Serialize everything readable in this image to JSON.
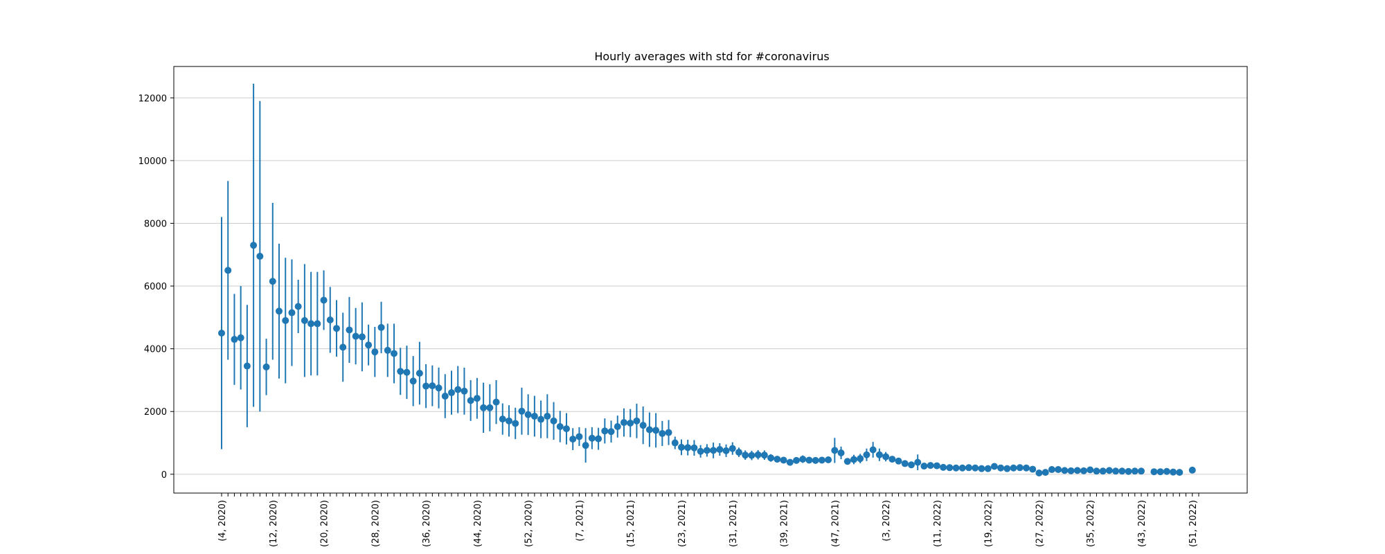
{
  "chart_data": {
    "type": "scatter",
    "title": "Hourly averages with std for #coronavirus",
    "xlabel": "",
    "ylabel": "",
    "ylim": [
      -600,
      13000
    ],
    "yticks": [
      0,
      2000,
      4000,
      6000,
      8000,
      10000,
      12000
    ],
    "ytick_labels": [
      "0",
      "2000",
      "4000",
      "6000",
      "8000",
      "10000",
      "12000"
    ],
    "grid": "horizontal",
    "legend": "none",
    "colors": {
      "marker": "#1f77b4",
      "grid": "#cccccc",
      "axes": "#000000"
    },
    "x_weeks": [
      "(4, 2020)",
      "(5, 2020)",
      "(6, 2020)",
      "(7, 2020)",
      "(8, 2020)",
      "(9, 2020)",
      "(10, 2020)",
      "(11, 2020)",
      "(12, 2020)",
      "(13, 2020)",
      "(14, 2020)",
      "(15, 2020)",
      "(16, 2020)",
      "(17, 2020)",
      "(18, 2020)",
      "(19, 2020)",
      "(20, 2020)",
      "(21, 2020)",
      "(22, 2020)",
      "(23, 2020)",
      "(24, 2020)",
      "(25, 2020)",
      "(26, 2020)",
      "(27, 2020)",
      "(28, 2020)",
      "(29, 2020)",
      "(30, 2020)",
      "(31, 2020)",
      "(32, 2020)",
      "(33, 2020)",
      "(34, 2020)",
      "(35, 2020)",
      "(36, 2020)",
      "(37, 2020)",
      "(38, 2020)",
      "(39, 2020)",
      "(40, 2020)",
      "(41, 2020)",
      "(42, 2020)",
      "(43, 2020)",
      "(44, 2020)",
      "(45, 2020)",
      "(46, 2020)",
      "(47, 2020)",
      "(48, 2020)",
      "(49, 2020)",
      "(50, 2020)",
      "(51, 2020)",
      "(52, 2020)",
      "(53, 2020)",
      "(1, 2021)",
      "(2, 2021)",
      "(3, 2021)",
      "(4, 2021)",
      "(5, 2021)",
      "(6, 2021)",
      "(7, 2021)",
      "(8, 2021)",
      "(9, 2021)",
      "(10, 2021)",
      "(11, 2021)",
      "(12, 2021)",
      "(13, 2021)",
      "(14, 2021)",
      "(15, 2021)",
      "(16, 2021)",
      "(17, 2021)",
      "(18, 2021)",
      "(19, 2021)",
      "(20, 2021)",
      "(21, 2021)",
      "(22, 2021)",
      "(23, 2021)",
      "(24, 2021)",
      "(25, 2021)",
      "(26, 2021)",
      "(27, 2021)",
      "(28, 2021)",
      "(29, 2021)",
      "(30, 2021)",
      "(31, 2021)",
      "(32, 2021)",
      "(33, 2021)",
      "(34, 2021)",
      "(35, 2021)",
      "(36, 2021)",
      "(37, 2021)",
      "(38, 2021)",
      "(39, 2021)",
      "(40, 2021)",
      "(41, 2021)",
      "(42, 2021)",
      "(43, 2021)",
      "(44, 2021)",
      "(45, 2021)",
      "(46, 2021)",
      "(47, 2021)",
      "(48, 2021)",
      "(49, 2021)",
      "(50, 2021)",
      "(51, 2021)",
      "(52, 2021)",
      "(1, 2022)",
      "(2, 2022)",
      "(3, 2022)",
      "(4, 2022)",
      "(5, 2022)",
      "(6, 2022)",
      "(7, 2022)",
      "(8, 2022)",
      "(9, 2022)",
      "(10, 2022)",
      "(11, 2022)",
      "(12, 2022)",
      "(13, 2022)",
      "(14, 2022)",
      "(15, 2022)",
      "(16, 2022)",
      "(17, 2022)",
      "(18, 2022)",
      "(19, 2022)",
      "(20, 2022)",
      "(21, 2022)",
      "(22, 2022)",
      "(23, 2022)",
      "(24, 2022)",
      "(25, 2022)",
      "(26, 2022)",
      "(27, 2022)",
      "(28, 2022)",
      "(29, 2022)",
      "(30, 2022)",
      "(31, 2022)",
      "(32, 2022)",
      "(33, 2022)",
      "(34, 2022)",
      "(35, 2022)",
      "(36, 2022)",
      "(37, 2022)",
      "(38, 2022)",
      "(39, 2022)",
      "(40, 2022)",
      "(41, 2022)",
      "(42, 2022)",
      "(43, 2022)",
      "(44, 2022)",
      "(45, 2022)",
      "(46, 2022)",
      "(47, 2022)",
      "(48, 2022)",
      "(49, 2022)",
      "(50, 2022)",
      "(51, 2022)",
      "(52, 2022)"
    ],
    "visible_tick_labels": [
      "(4, 2020)",
      "(12, 2020)",
      "(20, 2020)",
      "(28, 2020)",
      "(36, 2020)",
      "(44, 2020)",
      "(52, 2020)",
      "(7, 2021)",
      "(15, 2021)",
      "(23, 2021)",
      "(31, 2021)",
      "(39, 2021)",
      "(47, 2021)",
      "(3, 2022)",
      "(11, 2022)",
      "(19, 2022)",
      "(27, 2022)",
      "(35, 2022)",
      "(43, 2022)",
      "(51, 2022)"
    ],
    "series": [
      {
        "values": [
          4500,
          6500,
          4300,
          4350,
          3450,
          7300,
          6950,
          3420,
          6150,
          5200,
          4900,
          5150,
          5350,
          4900,
          4800,
          4800,
          5550,
          4920,
          4650,
          4050,
          4600,
          4400,
          4380,
          4120,
          3900,
          4680,
          3950,
          3850,
          3280,
          3250,
          2970,
          3220,
          2810,
          2820,
          2750,
          2490,
          2600,
          2700,
          2650,
          2350,
          2420,
          2120,
          2120,
          2300,
          1760,
          1700,
          1620,
          2010,
          1900,
          1850,
          1750,
          1850,
          1700,
          1520,
          1450,
          1120,
          1200,
          920,
          1150,
          1130,
          1380,
          1360,
          1520,
          1650,
          1630,
          1700,
          1560,
          1420,
          1400,
          1300,
          1330,
          1000,
          860,
          850,
          840,
          730,
          760,
          760,
          790,
          750,
          820,
          700,
          610,
          600,
          620,
          610,
          520,
          480,
          450,
          380,
          440,
          480,
          450,
          440,
          450,
          460,
          760,
          680,
          410,
          470,
          500,
          620,
          780,
          620,
          560,
          480,
          420,
          340,
          300,
          380,
          260,
          280,
          270,
          220,
          210,
          200,
          200,
          210,
          200,
          180,
          180,
          250,
          200,
          180,
          200,
          210,
          200,
          160,
          40,
          60,
          150,
          150,
          120,
          110,
          120,
          110,
          140,
          100,
          100,
          120,
          100,
          100,
          90,
          100,
          100,
          null,
          80,
          80,
          90,
          70,
          60,
          null,
          130
        ],
        "errors": [
          3700,
          2850,
          1450,
          1650,
          1950,
          5150,
          4950,
          900,
          2500,
          2150,
          2000,
          1700,
          850,
          1800,
          1650,
          1650,
          950,
          1050,
          900,
          1100,
          1050,
          900,
          1100,
          650,
          800,
          820,
          850,
          950,
          750,
          850,
          800,
          1000,
          700,
          650,
          650,
          700,
          700,
          750,
          750,
          650,
          650,
          800,
          750,
          700,
          500,
          500,
          500,
          750,
          650,
          650,
          600,
          700,
          600,
          500,
          500,
          350,
          300,
          550,
          350,
          350,
          400,
          350,
          350,
          450,
          450,
          550,
          600,
          550,
          550,
          400,
          400,
          200,
          250,
          250,
          250,
          200,
          200,
          250,
          200,
          200,
          200,
          150,
          150,
          150,
          150,
          150,
          120,
          100,
          100,
          100,
          100,
          120,
          100,
          100,
          100,
          100,
          400,
          200,
          100,
          150,
          150,
          200,
          250,
          200,
          150,
          100,
          100,
          50,
          50,
          250,
          50,
          50,
          50,
          50,
          50,
          50,
          50,
          50,
          50,
          50,
          50,
          50,
          50,
          50,
          50,
          50,
          50,
          50,
          50,
          30,
          40,
          40,
          40,
          30,
          30,
          30,
          30,
          30,
          30,
          30,
          30,
          30,
          30,
          30,
          30,
          null,
          30,
          30,
          30,
          30,
          30,
          null,
          30
        ]
      }
    ]
  }
}
